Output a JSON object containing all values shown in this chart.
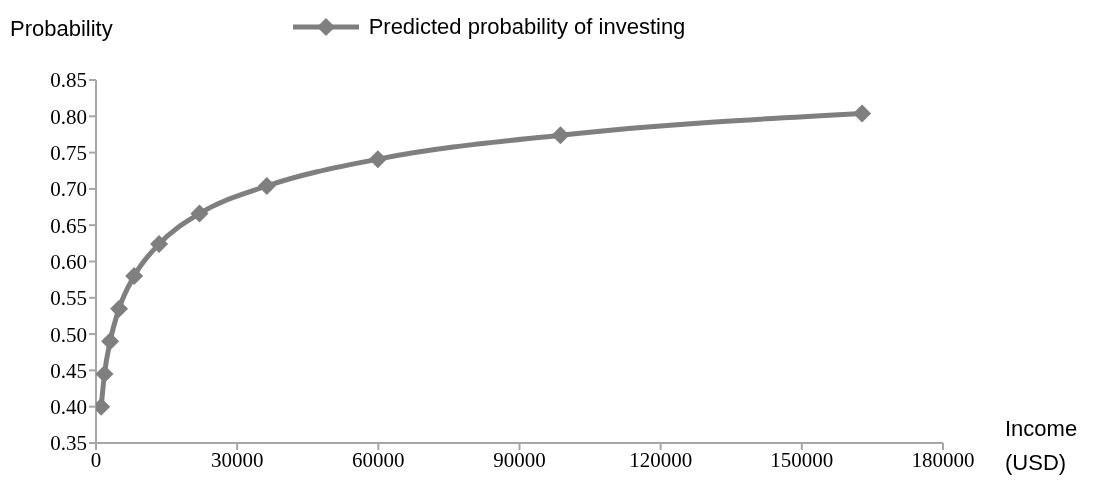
{
  "chart_data": {
    "type": "line",
    "xlabel": "Income (USD)",
    "ylabel": "Probability",
    "xlim": [
      0,
      180000
    ],
    "xticks": [
      0,
      30000,
      60000,
      90000,
      120000,
      150000,
      180000
    ],
    "ylim": [
      0.35,
      0.85
    ],
    "yticks": [
      {
        "value": 0.35,
        "label": "0.35"
      },
      {
        "value": 0.4,
        "label": "0.40"
      },
      {
        "value": 0.45,
        "label": "0.45"
      },
      {
        "value": 0.5,
        "label": "0.50"
      },
      {
        "value": 0.55,
        "label": "0.55"
      },
      {
        "value": 0.6,
        "label": "0.60"
      },
      {
        "value": 0.65,
        "label": "0.65"
      },
      {
        "value": 0.7,
        "label": "0.70"
      },
      {
        "value": 0.75,
        "label": "0.75"
      },
      {
        "value": 0.8,
        "label": "0.80"
      },
      {
        "value": 0.85,
        "label": "0.85"
      }
    ],
    "x": [
      1100,
      1800,
      3000,
      4900,
      8100,
      13400,
      22000,
      36300,
      59900,
      98700,
      162800
    ],
    "series": [
      {
        "name": "Predicted probability of investing",
        "color": "#7f7f7f",
        "values": [
          0.4,
          0.445,
          0.49,
          0.535,
          0.58,
          0.624,
          0.666,
          0.704,
          0.741,
          0.774,
          0.804
        ]
      }
    ],
    "marker": "diamond",
    "line_style": "solid",
    "grid": false,
    "legend": "top"
  }
}
